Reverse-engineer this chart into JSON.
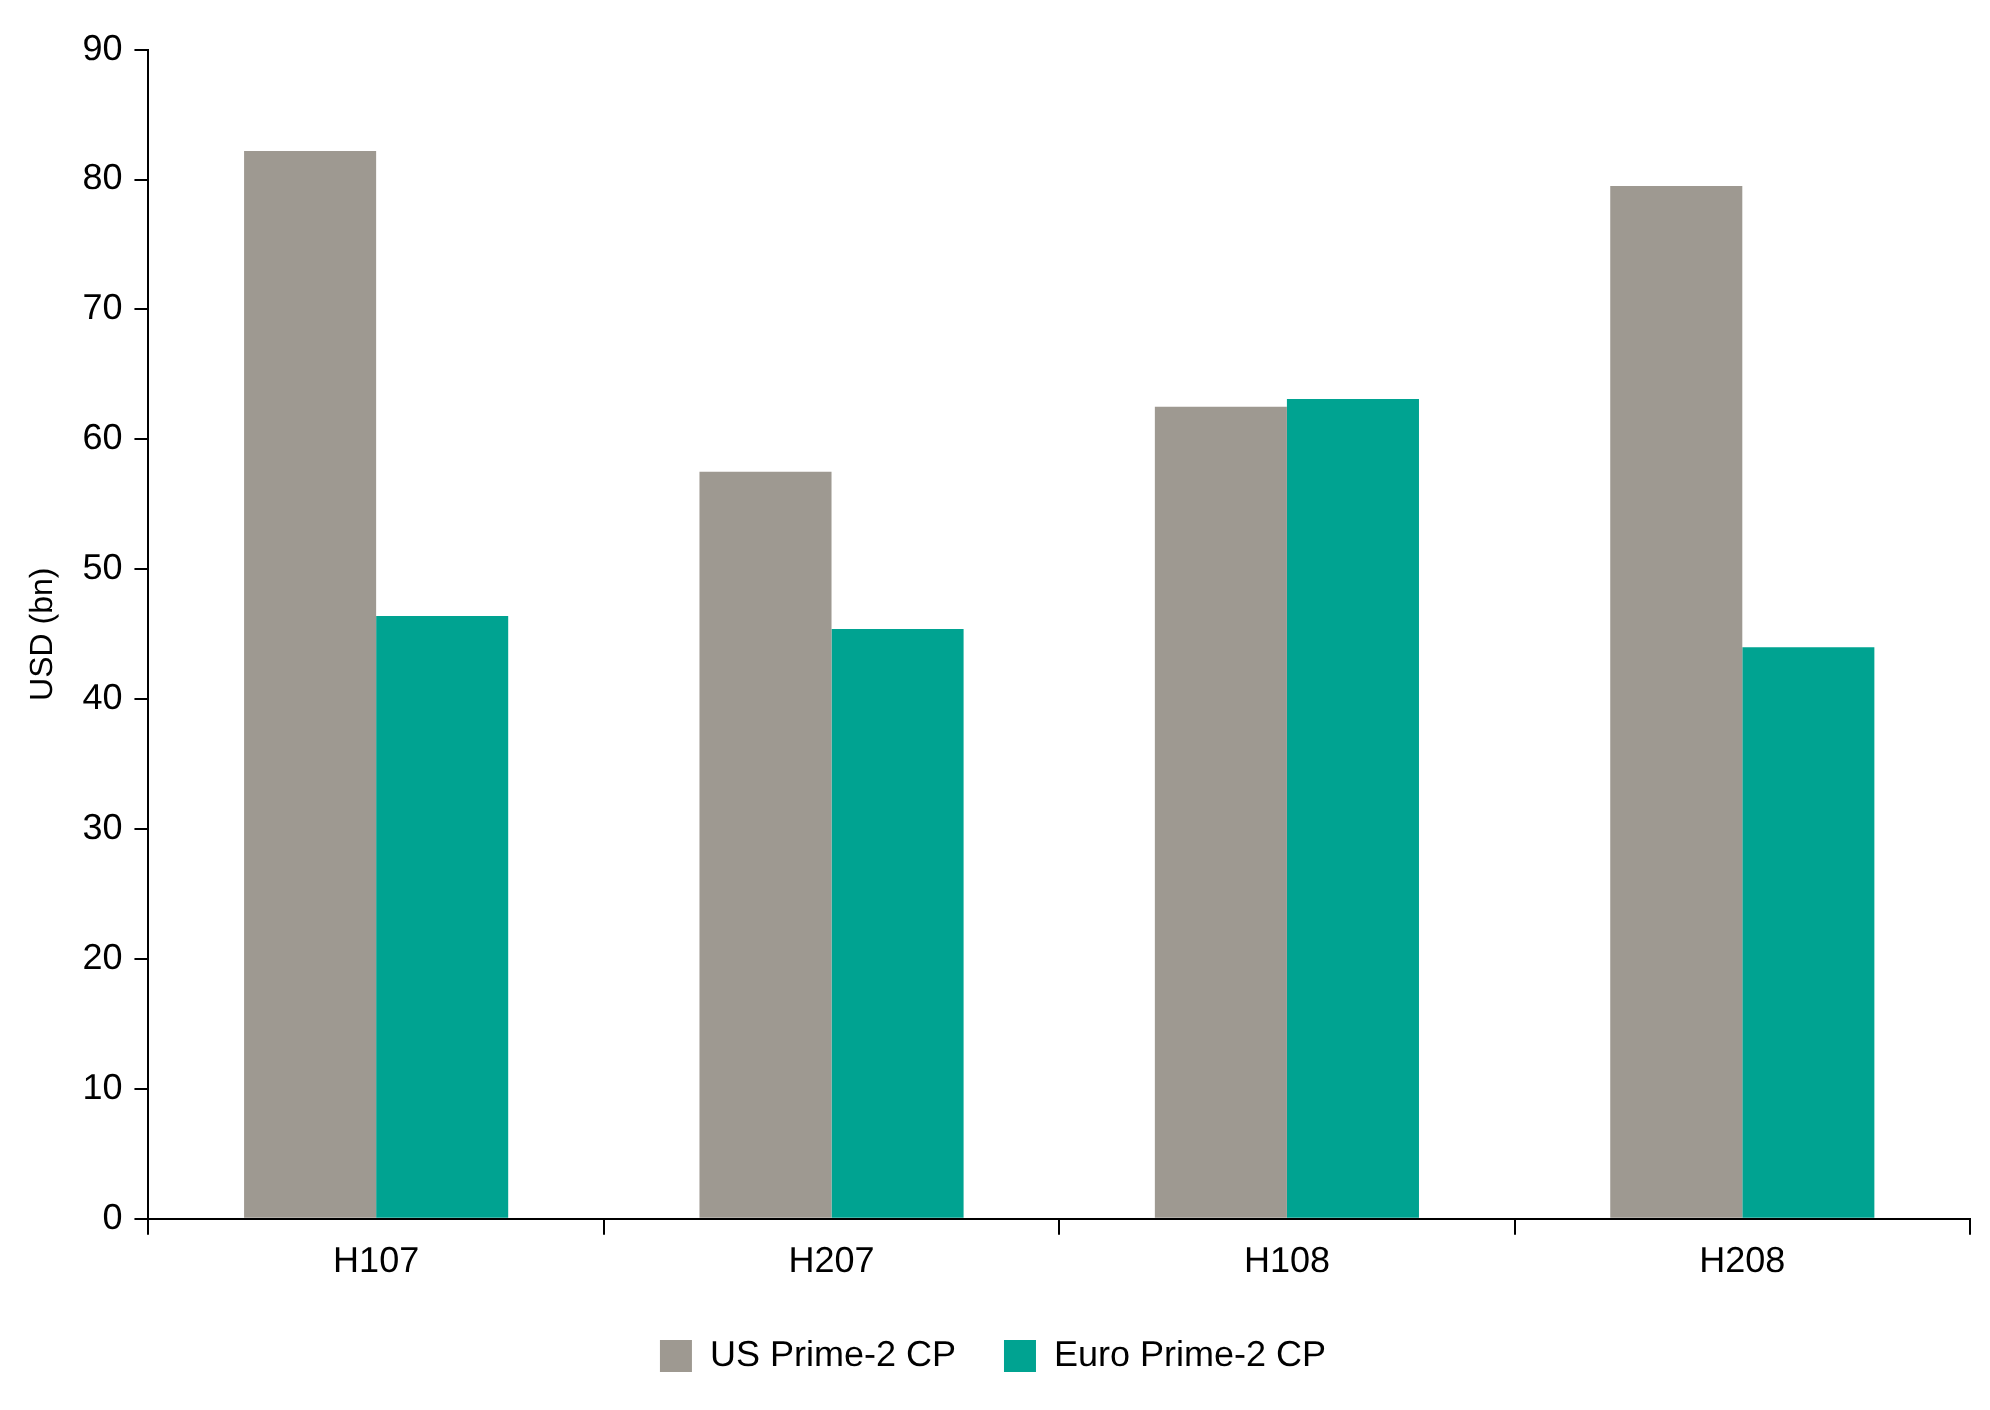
{
  "chart_data": {
    "type": "bar",
    "ylabel": "USD (bn)",
    "categories": [
      "H107",
      "H207",
      "H108",
      "H208"
    ],
    "series": [
      {
        "name": "US Prime-2 CP",
        "color": "#9e9991",
        "values": [
          82.2,
          57.5,
          62.5,
          79.5
        ]
      },
      {
        "name": "Euro Prime-2 CP",
        "color": "#00a391",
        "values": [
          46.4,
          45.4,
          63.1,
          44.0
        ]
      }
    ],
    "ylim": [
      0,
      90
    ],
    "yticks": [
      0,
      10,
      20,
      30,
      40,
      50,
      60,
      70,
      80,
      90
    ],
    "grid": false,
    "legend": "bottom"
  }
}
